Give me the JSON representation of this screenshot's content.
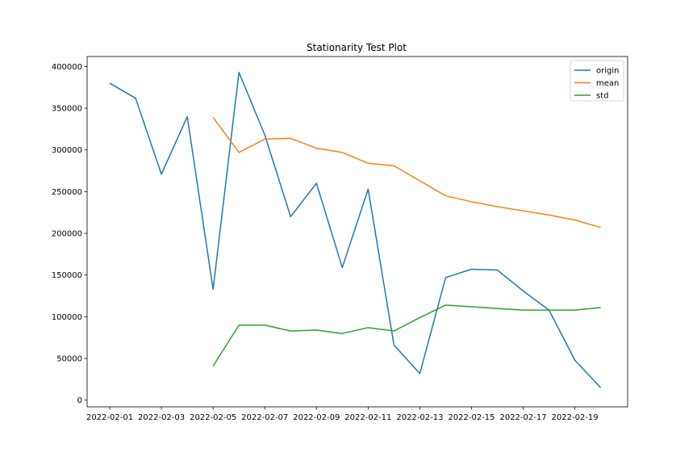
{
  "chart_data": {
    "type": "line",
    "title": "Stationarity Test Plot",
    "xlabel": "",
    "ylabel": "",
    "x": [
      "2022-02-01",
      "2022-02-02",
      "2022-02-03",
      "2022-02-04",
      "2022-02-05",
      "2022-02-06",
      "2022-02-07",
      "2022-02-08",
      "2022-02-09",
      "2022-02-10",
      "2022-02-11",
      "2022-02-12",
      "2022-02-13",
      "2022-02-14",
      "2022-02-15",
      "2022-02-16",
      "2022-02-17",
      "2022-02-18",
      "2022-02-19",
      "2022-02-20"
    ],
    "xticks": [
      "2022-02-01",
      "2022-02-03",
      "2022-02-05",
      "2022-02-07",
      "2022-02-09",
      "2022-02-11",
      "2022-02-13",
      "2022-02-15",
      "2022-02-17",
      "2022-02-19"
    ],
    "yticks": [
      "0",
      "50000",
      "100000",
      "150000",
      "200000",
      "250000",
      "300000",
      "350000",
      "400000"
    ],
    "ylim": [
      -8000,
      412000
    ],
    "xlim": [
      "2022-01-31T03:00",
      "2022-02-21T01:00"
    ],
    "grid": false,
    "legend_position": "top-right",
    "series": [
      {
        "name": "origin",
        "color": "#1f77b4",
        "values": [
          380000,
          362000,
          271000,
          340000,
          133000,
          393000,
          318000,
          220000,
          260000,
          159000,
          253000,
          66000,
          32000,
          147000,
          157000,
          156000,
          131000,
          108000,
          48000,
          15000
        ]
      },
      {
        "name": "mean",
        "color": "#ff7f0e",
        "values": [
          null,
          null,
          null,
          null,
          339000,
          297000,
          313000,
          314000,
          302000,
          297000,
          284000,
          281000,
          263000,
          245000,
          238000,
          232000,
          227000,
          222000,
          216000,
          207000
        ]
      },
      {
        "name": "std",
        "color": "#2ca02c",
        "values": [
          null,
          null,
          null,
          null,
          41000,
          90000,
          90000,
          83000,
          84000,
          80000,
          87000,
          83000,
          99000,
          114000,
          112000,
          110000,
          108000,
          108000,
          108000,
          111000
        ]
      }
    ]
  }
}
